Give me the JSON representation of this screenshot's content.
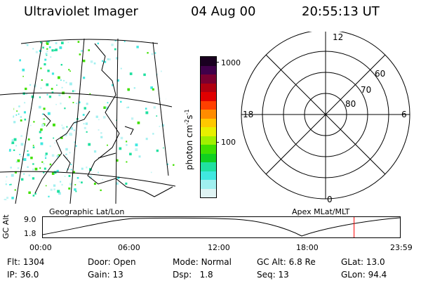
{
  "header": {
    "instrument": "Ultraviolet Imager",
    "date": "04 Aug 00",
    "time": "20:55:13 UT"
  },
  "colorbar": {
    "unit_prefix": "photon cm",
    "unit_exp1": "-2",
    "unit_mid": "s",
    "unit_exp2": "-1",
    "ticks": [
      "1000",
      "100"
    ],
    "colors": [
      "#1a0020",
      "#40004a",
      "#7a0030",
      "#b00010",
      "#e00000",
      "#ff4000",
      "#ff8c00",
      "#ffc800",
      "#e8f000",
      "#a0f000",
      "#40e000",
      "#10d020",
      "#20e0a0",
      "#40e8e0",
      "#a0f0f0",
      "#e0f4f4"
    ]
  },
  "geo_panel": {
    "label": "Geographic Lat/Lon"
  },
  "polar_panel": {
    "label": "Apex MLat/MLT",
    "mlt_labels": {
      "top": "12",
      "left": "18",
      "right": "6",
      "bottom": "0"
    },
    "lat_labels": [
      "60",
      "70",
      "80"
    ]
  },
  "altitude_plot": {
    "ylabel": "GC Alt",
    "yticks": [
      "9.0",
      "1.8"
    ],
    "xticks": [
      "00:00",
      "06:00",
      "12:00",
      "18:00",
      "23:59"
    ],
    "current_time_marker": "20:55",
    "marker_color": "#ff0000"
  },
  "info": {
    "row1": [
      {
        "key": "Flt:",
        "value": "1304"
      },
      {
        "key": "Door:",
        "value": "Open"
      },
      {
        "key": "Mode:",
        "value": "Normal"
      },
      {
        "key": "GC Alt:",
        "value": "6.8 Re"
      },
      {
        "key": "GLat:",
        "value": "13.0"
      }
    ],
    "row2": [
      {
        "key": "IP:",
        "value": "36.0"
      },
      {
        "key": "Gain:",
        "value": "13"
      },
      {
        "key": "Dsp:",
        "value": "1.8"
      },
      {
        "key": "Seq:",
        "value": "13"
      },
      {
        "key": "GLon:",
        "value": "94.4"
      }
    ]
  }
}
